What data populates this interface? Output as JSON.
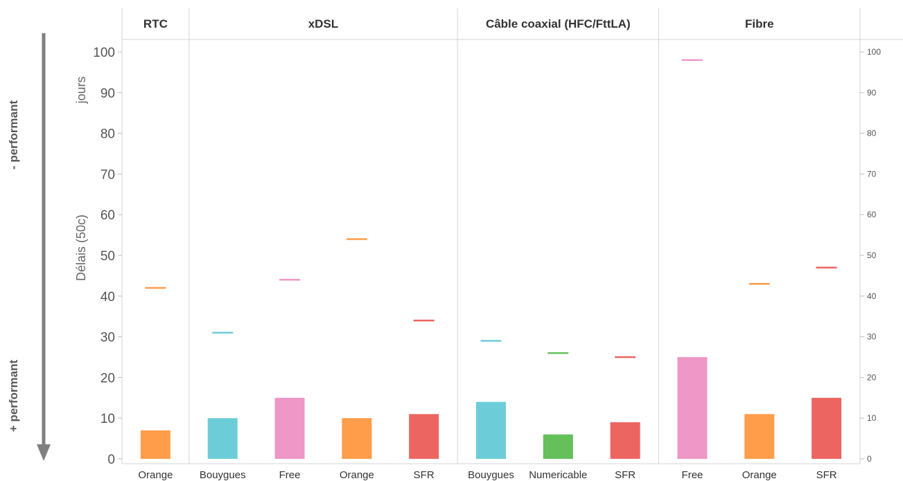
{
  "side_labels": {
    "top": "- performant",
    "bottom": "+ performant"
  },
  "chart_data": {
    "type": "bar",
    "ylabel": "Délais (50c)",
    "yunit": "jours",
    "ylim": [
      0,
      100
    ],
    "yticks": [
      0,
      10,
      20,
      30,
      40,
      50,
      60,
      70,
      80,
      90,
      100
    ],
    "groups": [
      {
        "name": "RTC",
        "categories": [
          "Orange"
        ]
      },
      {
        "name": "xDSL",
        "categories": [
          "Bouygues",
          "Free",
          "Orange",
          "SFR"
        ]
      },
      {
        "name": "Câble coaxial (HFC/FttLA)",
        "categories": [
          "Bouygues",
          "Numericable",
          "SFR"
        ]
      },
      {
        "name": "Fibre",
        "categories": [
          "Free",
          "Orange",
          "SFR"
        ]
      }
    ],
    "bars": [
      {
        "group": "RTC",
        "category": "Orange",
        "value": 7,
        "marker": 42,
        "color": "#ff9d4a"
      },
      {
        "group": "xDSL",
        "category": "Bouygues",
        "value": 10,
        "marker": 31,
        "color": "#6ccdd9"
      },
      {
        "group": "xDSL",
        "category": "Free",
        "value": 15,
        "marker": 44,
        "color": "#ef97c7"
      },
      {
        "group": "xDSL",
        "category": "Orange",
        "value": 10,
        "marker": 54,
        "color": "#ff9d4a"
      },
      {
        "group": "xDSL",
        "category": "SFR",
        "value": 11,
        "marker": 34,
        "color": "#ec6560"
      },
      {
        "group": "Câble coaxial (HFC/FttLA)",
        "category": "Bouygues",
        "value": 14,
        "marker": 29,
        "color": "#6ccdd9"
      },
      {
        "group": "Câble coaxial (HFC/FttLA)",
        "category": "Numericable",
        "value": 6,
        "marker": 26,
        "color": "#65bf5a"
      },
      {
        "group": "Câble coaxial (HFC/FttLA)",
        "category": "SFR",
        "value": 9,
        "marker": 25,
        "color": "#ec6560"
      },
      {
        "group": "Fibre",
        "category": "Free",
        "value": 25,
        "marker": 98,
        "color": "#ef97c7"
      },
      {
        "group": "Fibre",
        "category": "Orange",
        "value": 11,
        "marker": 43,
        "color": "#ff9d4a"
      },
      {
        "group": "Fibre",
        "category": "SFR",
        "value": 15,
        "marker": 47,
        "color": "#ec6560"
      }
    ]
  }
}
